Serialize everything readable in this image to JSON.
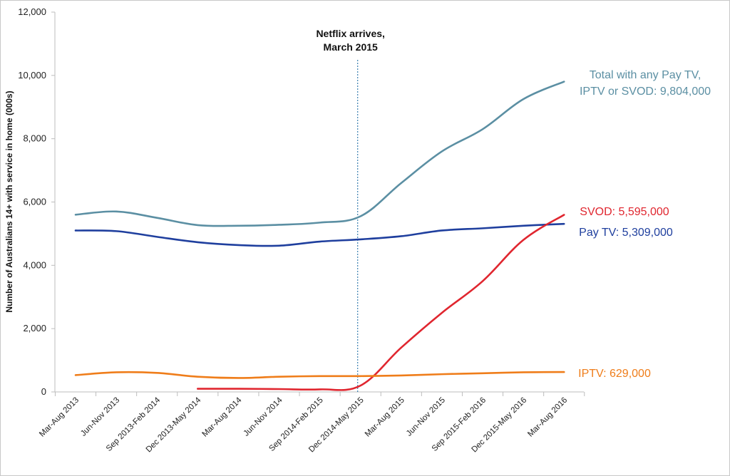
{
  "chart_data": {
    "type": "line",
    "title": "",
    "xlabel": "",
    "ylabel": "Number of Australians 14+ with service in home (000s)",
    "ylim": [
      0,
      12000
    ],
    "yticks": [
      "0",
      "2,000",
      "4,000",
      "6,000",
      "8,000",
      "10,000",
      "12,000"
    ],
    "ytick_values": [
      0,
      2000,
      4000,
      6000,
      8000,
      10000,
      12000
    ],
    "categories": [
      "Mar-Aug 2013",
      "Jun-Nov 2013",
      "Sep 2013-Feb 2014",
      "Dec 2013-May 2014",
      "Mar-Aug 2014",
      "Jun-Nov 2014",
      "Sep 2014-Feb 2015",
      "Dec 2014-May 2015",
      "Mar-Aug 2015",
      "Jun-Nov 2015",
      "Sep 2015-Feb 2016",
      "Dec 2015-May 2016",
      "Mar-Aug 2016"
    ],
    "series": [
      {
        "name": "Total with any Pay TV, IPTV or SVOD",
        "color": "#5b8fa3",
        "values": [
          5600,
          5700,
          5500,
          5270,
          5250,
          5280,
          5350,
          5550,
          6600,
          7600,
          8300,
          9250,
          9804
        ],
        "label_lines": [
          "Total with any Pay TV,",
          "IPTV or SVOD: 9,804,000"
        ]
      },
      {
        "name": "Pay TV",
        "color": "#1f3f9e",
        "values": [
          5100,
          5080,
          4900,
          4730,
          4640,
          4620,
          4750,
          4820,
          4920,
          5100,
          5170,
          5250,
          5309
        ],
        "label_lines": [
          "Pay TV: 5,309,000"
        ]
      },
      {
        "name": "SVOD",
        "color": "#e0262f",
        "values": [
          null,
          null,
          null,
          100,
          100,
          90,
          80,
          200,
          1400,
          2500,
          3500,
          4800,
          5595
        ],
        "label_lines": [
          "SVOD: 5,595,000"
        ]
      },
      {
        "name": "IPTV",
        "color": "#ef7d1a",
        "values": [
          530,
          620,
          600,
          480,
          440,
          480,
          500,
          500,
          520,
          560,
          590,
          620,
          629
        ],
        "label_lines": [
          "IPTV: 629,000"
        ]
      }
    ],
    "annotations": [
      {
        "text_lines": [
          "Netflix arrives,",
          "March 2015"
        ],
        "category_index": 7,
        "style": "dotted-vertical-line",
        "color": "#3a7fb0"
      }
    ]
  }
}
